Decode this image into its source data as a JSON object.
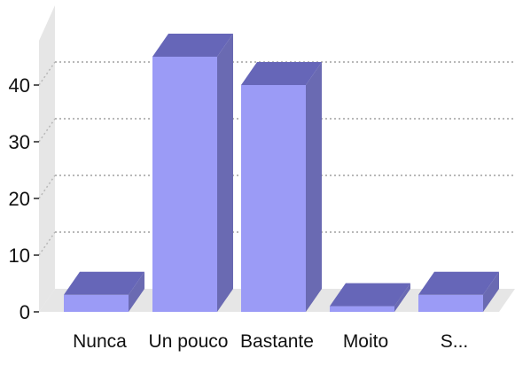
{
  "chart_data": {
    "type": "bar",
    "categories": [
      "Nunca",
      "Un pouco",
      "Bastante",
      "Moito",
      "S..."
    ],
    "values": [
      3,
      45,
      40,
      1,
      3
    ],
    "ylim": [
      0,
      50
    ],
    "yticks": [
      0,
      10,
      20,
      30,
      40
    ],
    "grid": true,
    "three_d": true
  },
  "colors": {
    "bar_front": "#9b9bf6",
    "bar_top": "#6666b8",
    "bar_side": "#6a6ab2",
    "wall": "#e6e6e6",
    "grid": "#b8b8b8"
  }
}
